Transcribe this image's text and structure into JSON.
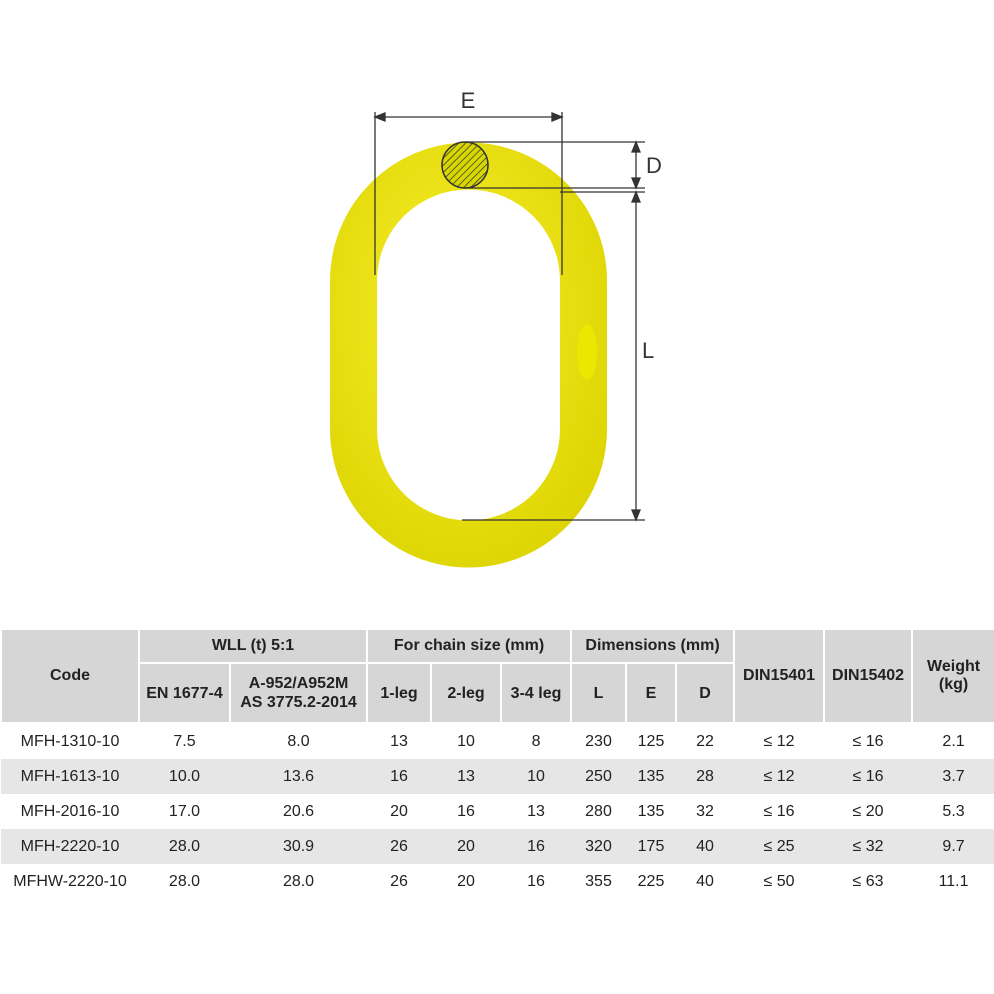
{
  "diagram": {
    "labels": {
      "E": "E",
      "D": "D",
      "L": "L"
    }
  },
  "table": {
    "header": {
      "code": "Code",
      "wll": "WLL (t) 5:1",
      "en": "EN 1677-4",
      "astm": [
        "A-952/A952M",
        "AS 3775.2-2014"
      ],
      "chain": "For chain size (mm)",
      "leg1": "1-leg",
      "leg2": "2-leg",
      "leg34": "3-4 leg",
      "dims": "Dimensions (mm)",
      "L": "L",
      "E": "E",
      "D": "D",
      "din1": "DIN15401",
      "din2": "DIN15402",
      "weight": [
        "Weight",
        "(kg)"
      ]
    },
    "rows": [
      [
        "MFH-1310-10",
        "7.5",
        "8.0",
        "13",
        "10",
        "8",
        "230",
        "125",
        "22",
        "≤ 12",
        "≤ 16",
        "2.1"
      ],
      [
        "MFH-1613-10",
        "10.0",
        "13.6",
        "16",
        "13",
        "10",
        "250",
        "135",
        "28",
        "≤ 12",
        "≤ 16",
        "3.7"
      ],
      [
        "MFH-2016-10",
        "17.0",
        "20.6",
        "20",
        "16",
        "13",
        "280",
        "135",
        "32",
        "≤ 16",
        "≤ 20",
        "5.3"
      ],
      [
        "MFH-2220-10",
        "28.0",
        "30.9",
        "26",
        "20",
        "16",
        "320",
        "175",
        "40",
        "≤ 25",
        "≤ 32",
        "9.7"
      ],
      [
        "MFHW-2220-10",
        "28.0",
        "28.0",
        "26",
        "20",
        "16",
        "355",
        "225",
        "40",
        "≤ 50",
        "≤ 63",
        "11.1"
      ]
    ]
  }
}
